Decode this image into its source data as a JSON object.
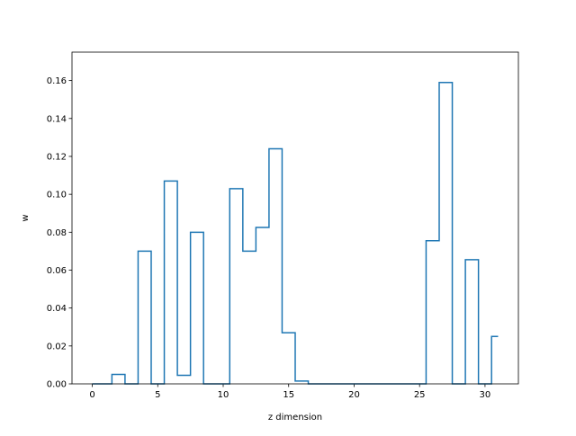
{
  "chart_data": {
    "type": "line",
    "drawstyle": "steps-mid",
    "xlabel": "z dimension",
    "ylabel": "w",
    "xlim": [
      -1.55,
      32.55
    ],
    "ylim": [
      0,
      0.175
    ],
    "xticks": [
      0,
      5,
      10,
      15,
      20,
      25,
      30
    ],
    "yticks": [
      0.0,
      0.02,
      0.04,
      0.06,
      0.08,
      0.1,
      0.12,
      0.14,
      0.16
    ],
    "ytick_labels": [
      "0.00",
      "0.02",
      "0.04",
      "0.06",
      "0.08",
      "0.10",
      "0.12",
      "0.14",
      "0.16"
    ],
    "grid": false,
    "series": [
      {
        "color": "#1f77b4",
        "x": [
          0,
          1,
          2,
          3,
          4,
          5,
          6,
          7,
          8,
          9,
          10,
          11,
          12,
          13,
          14,
          15,
          16,
          17,
          18,
          19,
          20,
          21,
          22,
          23,
          24,
          25,
          26,
          27,
          28,
          29,
          30,
          31
        ],
        "values": [
          0,
          0,
          0.005,
          0,
          0.07,
          0,
          0.107,
          0.0045,
          0.08,
          0,
          0,
          0.103,
          0.07,
          0.0825,
          0.124,
          0.027,
          0.0015,
          0,
          0,
          0,
          0,
          0,
          0,
          0,
          0,
          0,
          0.0755,
          0.159,
          0,
          0.0655,
          0,
          0.025
        ]
      }
    ]
  }
}
